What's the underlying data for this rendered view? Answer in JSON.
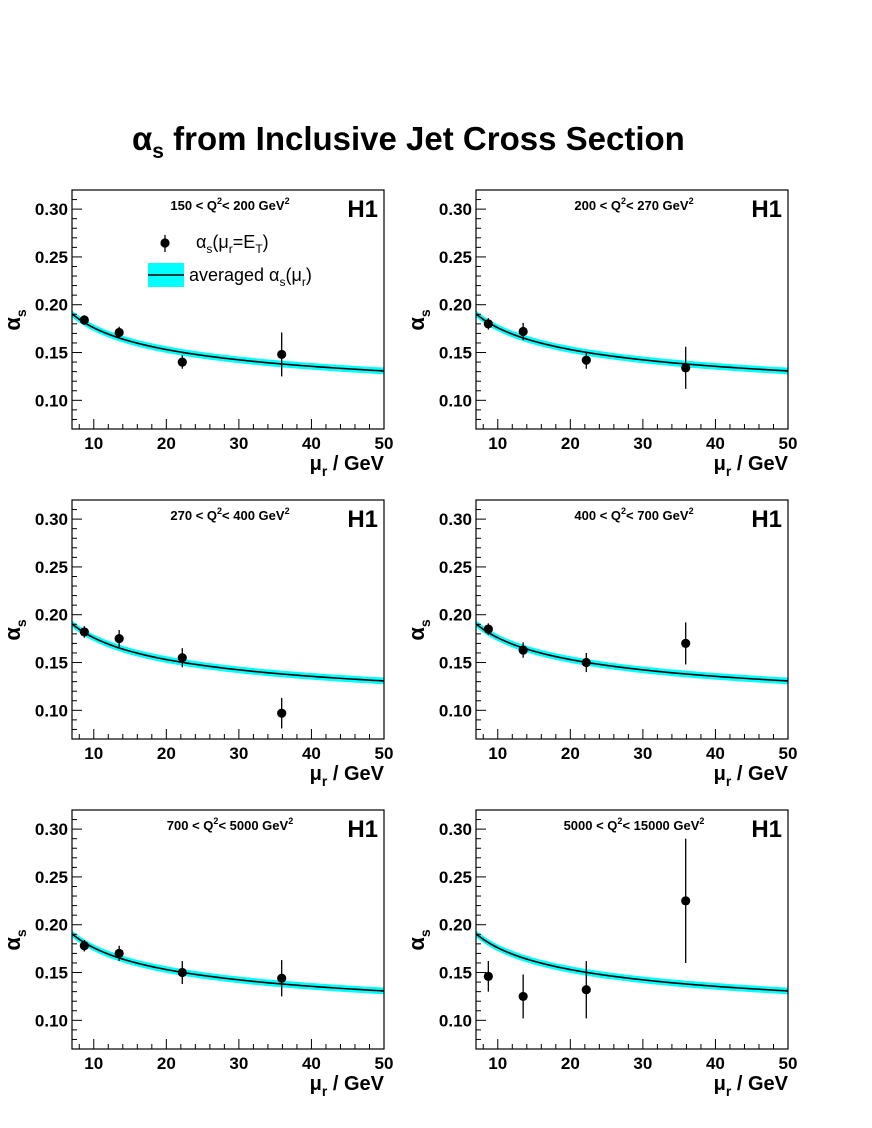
{
  "figure": {
    "title_symbol": "α",
    "title_sub": "s",
    "title_rest": " from Inclusive Jet Cross Section"
  },
  "colors": {
    "band": "#00ffff",
    "curve": "#000000",
    "points": "#000000",
    "frame": "#000000"
  },
  "legend": {
    "points_label": "αs(μr=ET)",
    "band_label": "averaged αs(μr)"
  },
  "chart_data": [
    {
      "type": "scatter",
      "title": "150 < Q2< 200 GeV2",
      "experiment": "H1",
      "xlabel": "μr / GeV",
      "ylabel": "αs",
      "xlim": [
        7,
        50
      ],
      "ylim": [
        0.07,
        0.32
      ],
      "x_ticks": [
        10,
        20,
        30,
        40,
        50
      ],
      "y_ticks": [
        0.1,
        0.15,
        0.2,
        0.25,
        0.3
      ],
      "y_tick_labels": [
        "0.10",
        "0.15",
        "0.20",
        "0.25",
        "0.30"
      ],
      "series": [
        {
          "name": "αs(μr=ET)",
          "x": [
            8.7,
            13.5,
            22.2,
            35.9
          ],
          "y": [
            0.184,
            0.171,
            0.14,
            0.148
          ],
          "err": [
            0.005,
            0.006,
            0.007,
            0.023
          ]
        },
        {
          "name": "averaged αs(μr)",
          "curve": "running",
          "alpha_mz": 0.1193,
          "band_halfwidth": 0.0035
        }
      ]
    },
    {
      "type": "scatter",
      "title": "200 < Q2< 270 GeV2",
      "experiment": "H1",
      "xlabel": "μr / GeV",
      "ylabel": "αs",
      "xlim": [
        7,
        50
      ],
      "ylim": [
        0.07,
        0.32
      ],
      "x_ticks": [
        10,
        20,
        30,
        40,
        50
      ],
      "y_ticks": [
        0.1,
        0.15,
        0.2,
        0.25,
        0.3
      ],
      "y_tick_labels": [
        "0.10",
        "0.15",
        "0.20",
        "0.25",
        "0.30"
      ],
      "series": [
        {
          "name": "αs(μr=ET)",
          "x": [
            8.7,
            13.5,
            22.2,
            35.9
          ],
          "y": [
            0.18,
            0.172,
            0.142,
            0.134
          ],
          "err": [
            0.006,
            0.009,
            0.009,
            0.022
          ]
        },
        {
          "name": "averaged αs(μr)",
          "curve": "running",
          "alpha_mz": 0.1193,
          "band_halfwidth": 0.0035
        }
      ]
    },
    {
      "type": "scatter",
      "title": "270 < Q2< 400 GeV2",
      "experiment": "H1",
      "xlabel": "μr / GeV",
      "ylabel": "αs",
      "xlim": [
        7,
        50
      ],
      "ylim": [
        0.07,
        0.32
      ],
      "x_ticks": [
        10,
        20,
        30,
        40,
        50
      ],
      "y_ticks": [
        0.1,
        0.15,
        0.2,
        0.25,
        0.3
      ],
      "y_tick_labels": [
        "0.10",
        "0.15",
        "0.20",
        "0.25",
        "0.30"
      ],
      "series": [
        {
          "name": "αs(μr=ET)",
          "x": [
            8.7,
            13.5,
            22.2,
            35.9
          ],
          "y": [
            0.182,
            0.175,
            0.155,
            0.097
          ],
          "err": [
            0.006,
            0.009,
            0.01,
            0.016
          ]
        },
        {
          "name": "averaged αs(μr)",
          "curve": "running",
          "alpha_mz": 0.1193,
          "band_halfwidth": 0.0035
        }
      ]
    },
    {
      "type": "scatter",
      "title": "400 < Q2< 700 GeV2",
      "experiment": "H1",
      "xlabel": "μr / GeV",
      "ylabel": "αs",
      "xlim": [
        7,
        50
      ],
      "ylim": [
        0.07,
        0.32
      ],
      "x_ticks": [
        10,
        20,
        30,
        40,
        50
      ],
      "y_ticks": [
        0.1,
        0.15,
        0.2,
        0.25,
        0.3
      ],
      "y_tick_labels": [
        "0.10",
        "0.15",
        "0.20",
        "0.25",
        "0.30"
      ],
      "series": [
        {
          "name": "αs(μr=ET)",
          "x": [
            8.7,
            13.5,
            22.2,
            35.9
          ],
          "y": [
            0.185,
            0.163,
            0.15,
            0.17
          ],
          "err": [
            0.006,
            0.008,
            0.01,
            0.022
          ]
        },
        {
          "name": "averaged αs(μr)",
          "curve": "running",
          "alpha_mz": 0.1193,
          "band_halfwidth": 0.0035
        }
      ]
    },
    {
      "type": "scatter",
      "title": "700 < Q2< 5000 GeV2",
      "experiment": "H1",
      "xlabel": "μr / GeV",
      "ylabel": "αs",
      "xlim": [
        7,
        50
      ],
      "ylim": [
        0.07,
        0.32
      ],
      "x_ticks": [
        10,
        20,
        30,
        40,
        50
      ],
      "y_ticks": [
        0.1,
        0.15,
        0.2,
        0.25,
        0.3
      ],
      "y_tick_labels": [
        "0.10",
        "0.15",
        "0.20",
        "0.25",
        "0.30"
      ],
      "series": [
        {
          "name": "αs(μr=ET)",
          "x": [
            8.7,
            13.5,
            22.2,
            35.9
          ],
          "y": [
            0.178,
            0.17,
            0.15,
            0.144
          ],
          "err": [
            0.006,
            0.008,
            0.012,
            0.019
          ]
        },
        {
          "name": "averaged αs(μr)",
          "curve": "running",
          "alpha_mz": 0.1193,
          "band_halfwidth": 0.0035
        }
      ]
    },
    {
      "type": "scatter",
      "title": "5000 < Q2< 15000 GeV2",
      "experiment": "H1",
      "xlabel": "μr / GeV",
      "ylabel": "αs",
      "xlim": [
        7,
        50
      ],
      "ylim": [
        0.07,
        0.32
      ],
      "x_ticks": [
        10,
        20,
        30,
        40,
        50
      ],
      "y_ticks": [
        0.1,
        0.15,
        0.2,
        0.25,
        0.3
      ],
      "y_tick_labels": [
        "0.10",
        "0.15",
        "0.20",
        "0.25",
        "0.30"
      ],
      "series": [
        {
          "name": "αs(μr=ET)",
          "x": [
            8.7,
            13.5,
            22.2,
            35.9
          ],
          "y": [
            0.146,
            0.125,
            0.132,
            0.225
          ],
          "err": [
            0.016,
            0.023,
            0.03,
            0.065
          ]
        },
        {
          "name": "averaged αs(μr)",
          "curve": "running",
          "alpha_mz": 0.1193,
          "band_halfwidth": 0.0035
        }
      ]
    }
  ]
}
